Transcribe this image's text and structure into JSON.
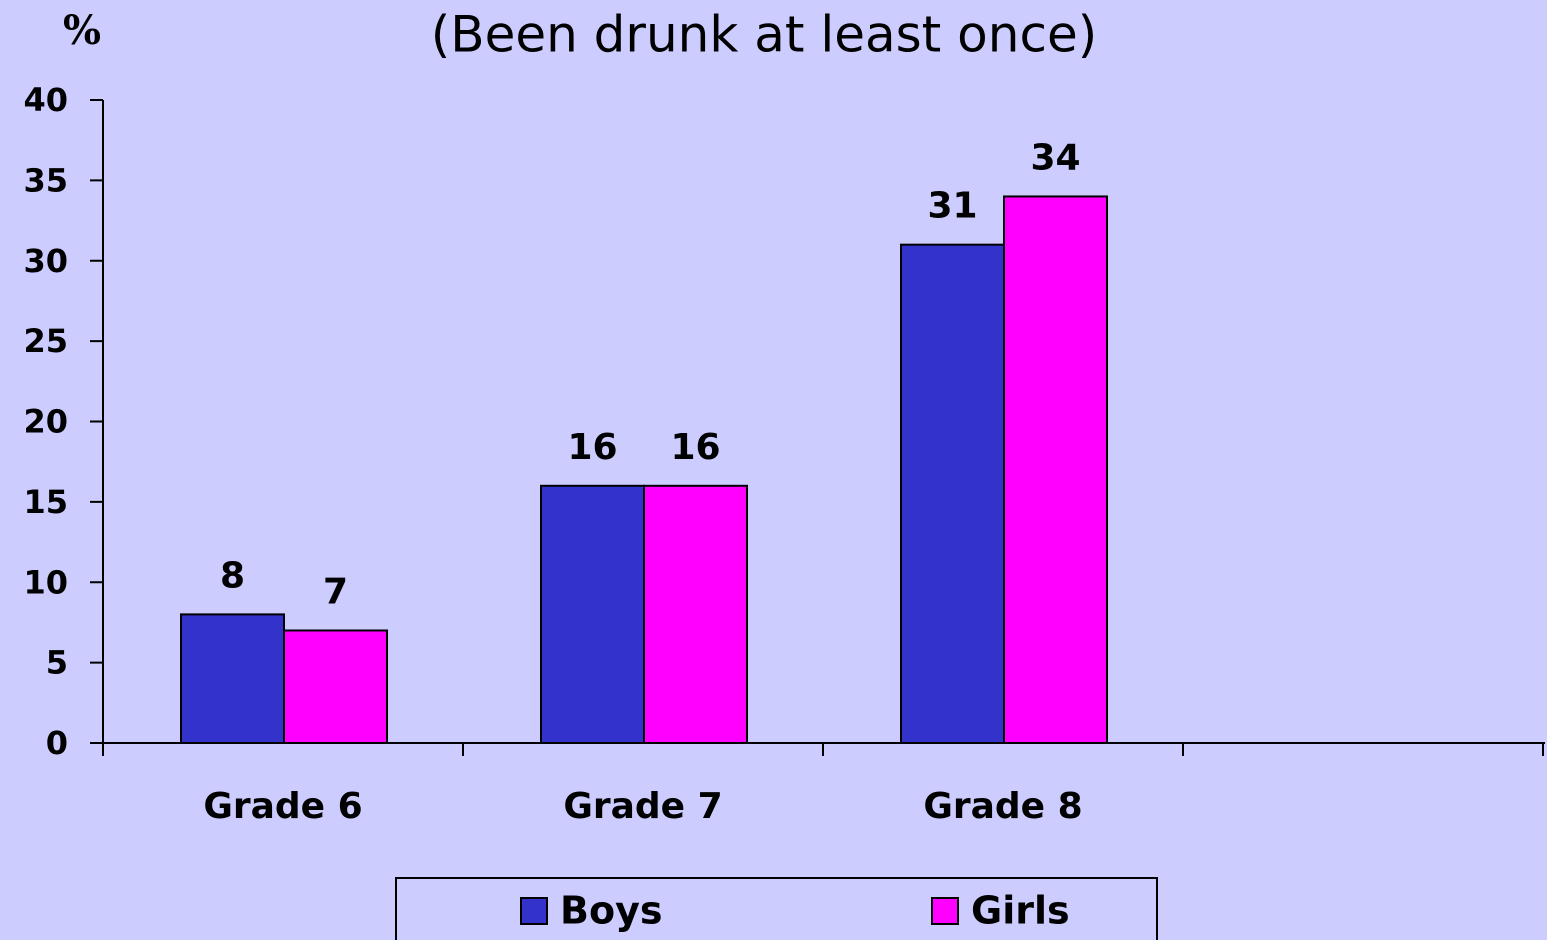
{
  "chart_data": {
    "type": "bar",
    "title": "(Been drunk at least once)",
    "y_label": "%",
    "categories": [
      "Grade 6",
      "Grade 7",
      "Grade 8",
      null
    ],
    "series": [
      {
        "name": "Boys",
        "color": "#3333cc",
        "values": [
          8,
          16,
          31,
          null
        ]
      },
      {
        "name": "Girls",
        "color": "#ff00ff",
        "values": [
          7,
          16,
          34,
          null
        ]
      }
    ],
    "ylim": [
      0,
      40
    ],
    "yticks": [
      0,
      5,
      10,
      15,
      20,
      25,
      30,
      35,
      40
    ],
    "grid": false,
    "legend": "bottom"
  }
}
